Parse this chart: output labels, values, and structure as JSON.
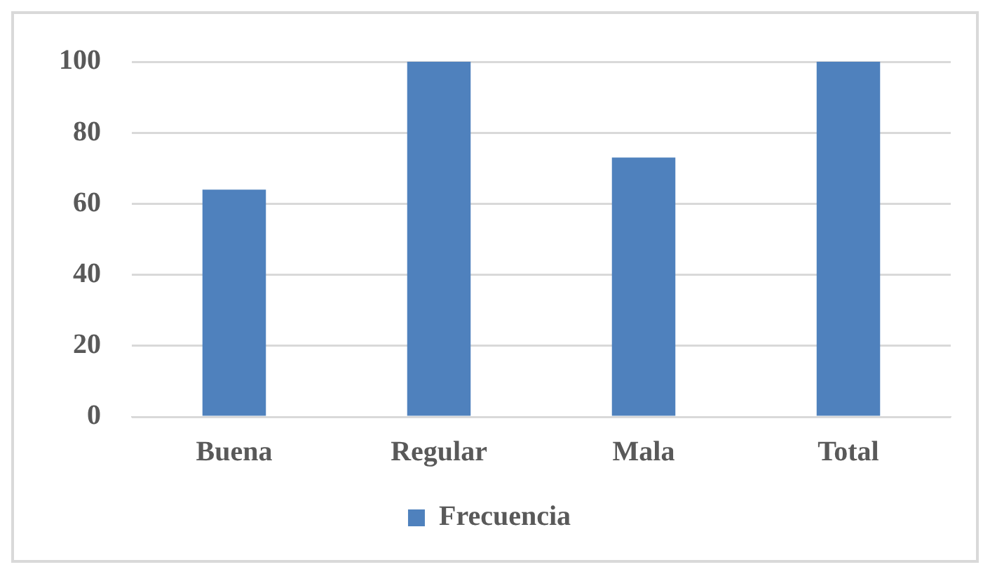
{
  "chart_data": {
    "type": "bar",
    "categories": [
      "Buena",
      "Regular",
      "Mala",
      "Total"
    ],
    "series": [
      {
        "name": "Frecuencia",
        "color": "#4f81bd",
        "values": [
          64,
          100,
          73,
          100
        ]
      }
    ],
    "ylim": [
      0,
      100
    ],
    "yticks": [
      0,
      20,
      40,
      60,
      80,
      100
    ],
    "grid": "y",
    "legend": "bottom"
  }
}
